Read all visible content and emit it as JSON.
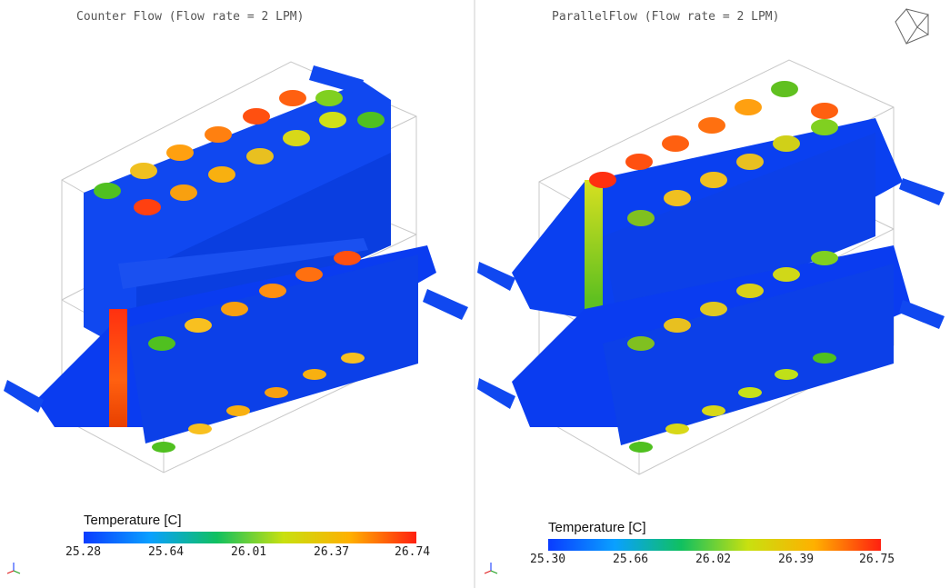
{
  "panels": [
    {
      "title": "Counter Flow (Flow rate = 2 LPM)",
      "legend": {
        "title": "Temperature [C]",
        "ticks": [
          "25.28",
          "25.64",
          "26.01",
          "26.37",
          "26.74"
        ]
      }
    },
    {
      "title": "ParallelFlow (Flow rate = 2 LPM)",
      "legend": {
        "title": "Temperature [C]",
        "ticks": [
          "25.30",
          "25.66",
          "26.02",
          "26.39",
          "26.75"
        ]
      }
    }
  ],
  "colormap": [
    "#0a3cff",
    "#0aa0ff",
    "#10c060",
    "#c8e010",
    "#ffb000",
    "#ff2010"
  ],
  "icons": {
    "view_cube": "view-cube-icon",
    "axis_triad": "axis-triad-icon"
  }
}
